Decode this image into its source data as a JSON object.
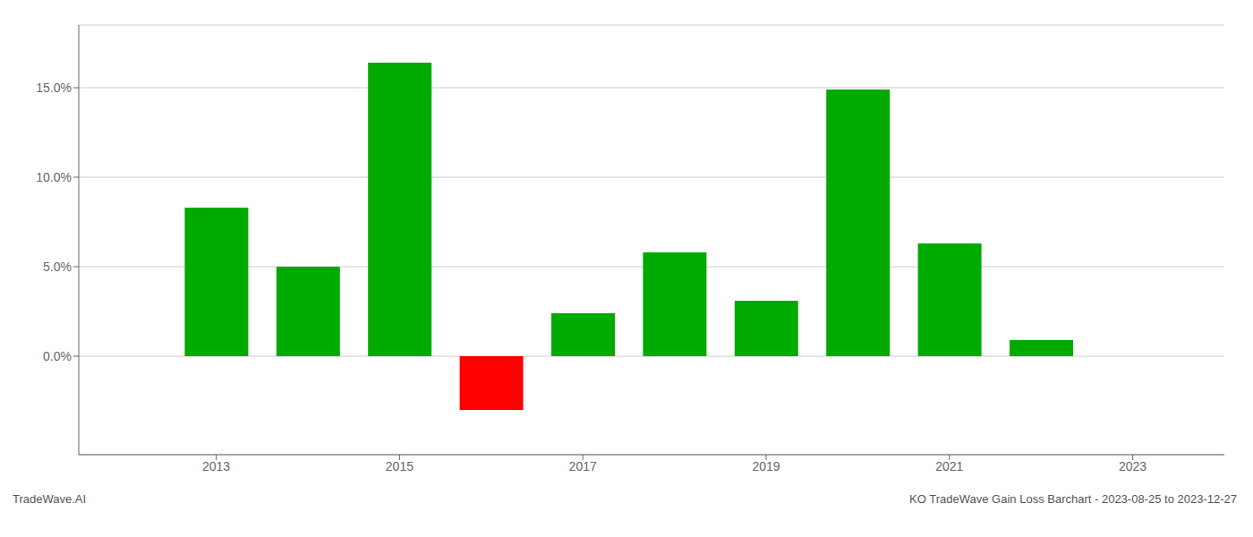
{
  "chart_data": {
    "type": "bar",
    "title": "KO TradeWave Gain Loss Barchart - 2023-08-25 to 2023-12-27",
    "annotations": [
      "TradeWave.AI"
    ],
    "x": [
      2013,
      2014,
      2015,
      2016,
      2017,
      2018,
      2019,
      2020,
      2021,
      2022
    ],
    "values": [
      0.083,
      0.05,
      0.164,
      -0.03,
      0.024,
      0.058,
      0.031,
      0.149,
      0.063,
      0.009
    ],
    "colors": [
      "#00aa00",
      "#00aa00",
      "#00aa00",
      "#ff0000",
      "#00aa00",
      "#00aa00",
      "#00aa00",
      "#00aa00",
      "#00aa00",
      "#00aa00"
    ],
    "xlim": [
      2011.5,
      2024.0
    ],
    "ylim": [
      -0.055,
      0.185
    ],
    "xticks": [
      2013,
      2015,
      2017,
      2019,
      2021,
      2023
    ],
    "yticks": [
      {
        "value": 0.0,
        "label": "0.0%"
      },
      {
        "value": 0.05,
        "label": "5.0%"
      },
      {
        "value": 0.1,
        "label": "10.0%"
      },
      {
        "value": 0.15,
        "label": "15.0%"
      }
    ],
    "grid": true
  }
}
